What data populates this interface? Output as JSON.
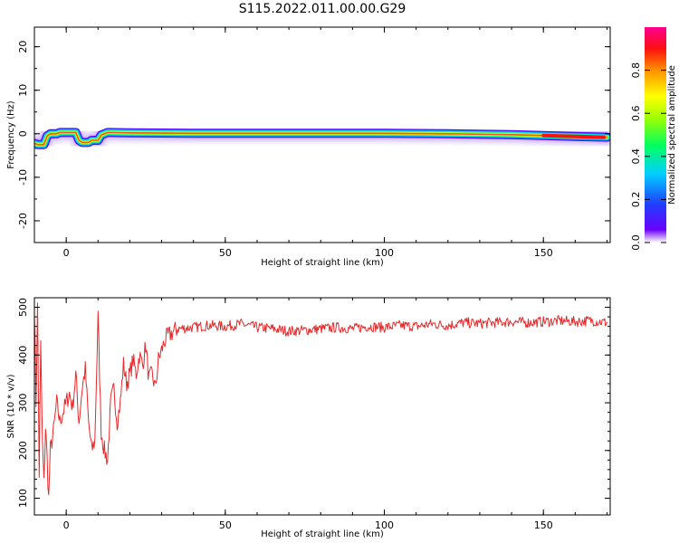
{
  "title": "S115.2022.011.00.00.G29",
  "colors": {
    "snr_line": "#e8282a",
    "frame": "#000000",
    "background": "#ffffff"
  },
  "chart_data": [
    {
      "type": "heatmap",
      "xlabel": "Height of straight line (km)",
      "ylabel": "Frequency (Hz)",
      "xlim": [
        -10,
        171
      ],
      "ylim": [
        -25,
        24.5
      ],
      "x_ticks": [
        "0",
        "50",
        "100",
        "150"
      ],
      "y_ticks": [
        "20",
        "10",
        "0",
        "-10",
        "-20"
      ],
      "colorbar": {
        "label": "Normalized spectral amplitude",
        "range": [
          0,
          1
        ],
        "ticks": [
          "0.0",
          "0.2",
          "0.4",
          "0.6",
          "0.8"
        ]
      },
      "ridge": {
        "x": [
          -10,
          -9,
          -7,
          -6,
          -5,
          -3,
          -2,
          0,
          3,
          4,
          5,
          6,
          7,
          8,
          10,
          11,
          13,
          14,
          20,
          40,
          60,
          80,
          100,
          120,
          140,
          150,
          160,
          170
        ],
        "freq": [
          -2.2,
          -2.5,
          -2.5,
          -0.5,
          0,
          0,
          0.3,
          0.3,
          0.3,
          -1.5,
          -2,
          -2,
          -2,
          -1.5,
          -1.5,
          -0.3,
          0.3,
          0.3,
          0.2,
          0.1,
          0.1,
          0.1,
          0.1,
          0,
          -0.2,
          -0.4,
          -0.6,
          -0.8
        ]
      }
    },
    {
      "type": "line",
      "xlabel": "Height of straight line (km)",
      "ylabel": "SNR (10 * v/v)",
      "xlim": [
        -10,
        171
      ],
      "ylim": [
        65,
        520
      ],
      "x_ticks": [
        "0",
        "50",
        "100",
        "150"
      ],
      "y_ticks": [
        "100",
        "200",
        "300",
        "400",
        "500"
      ],
      "series": [
        {
          "x": [
            -10,
            -9.5,
            -9,
            -8.5,
            -8,
            -7.5,
            -7,
            -6.5,
            -6,
            -5.5,
            -5,
            -4,
            -3,
            -2,
            -1,
            0,
            1,
            2,
            3,
            4,
            5,
            6,
            7,
            8,
            9,
            10,
            11,
            12,
            13,
            14,
            15,
            16,
            17,
            18,
            19,
            20,
            21,
            22,
            23,
            24,
            25,
            26,
            27,
            28,
            29,
            30,
            31,
            32,
            33,
            34,
            35,
            40,
            45,
            50,
            55,
            60,
            65,
            70,
            75,
            80,
            85,
            90,
            95,
            100,
            105,
            110,
            115,
            120,
            125,
            130,
            135,
            140,
            145,
            150,
            155,
            160,
            165,
            170
          ],
          "values": [
            500,
            300,
            500,
            150,
            420,
            220,
            130,
            250,
            180,
            100,
            200,
            240,
            300,
            260,
            280,
            300,
            320,
            290,
            360,
            260,
            330,
            370,
            260,
            200,
            220,
            480,
            240,
            200,
            180,
            300,
            330,
            260,
            300,
            380,
            340,
            360,
            390,
            360,
            400,
            380,
            420,
            350,
            360,
            330,
            390,
            410,
            430,
            440,
            445,
            450,
            455,
            458,
            462,
            460,
            465,
            458,
            455,
            450,
            452,
            455,
            458,
            455,
            460,
            458,
            462,
            460,
            465,
            462,
            468,
            466,
            468,
            470,
            468,
            470,
            472,
            470,
            472,
            468
          ]
        }
      ]
    }
  ]
}
